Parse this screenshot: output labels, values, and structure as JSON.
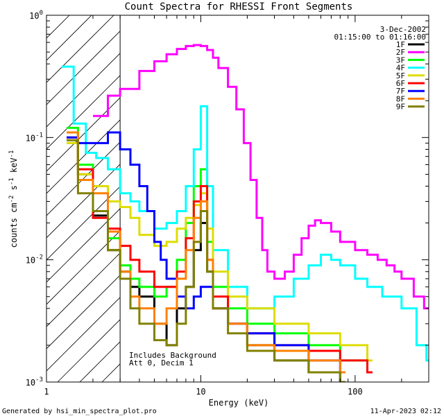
{
  "chart_data": {
    "type": "line",
    "title": "Count Spectra for RHESSI Front Segments",
    "xlabel": "Energy (keV)",
    "ylabel_main": "counts cm",
    "ylabel_sup1": "-2",
    "ylabel_mid": " s",
    "ylabel_sup2": "-1",
    "ylabel_end": " keV",
    "ylabel_sup3": "-1",
    "x_scale": "log",
    "y_scale": "log",
    "xlim": [
      1,
      300
    ],
    "ylim": [
      0.001,
      1
    ],
    "x_ticks": [
      {
        "value": 1,
        "label": "1"
      },
      {
        "value": 10,
        "label": "10"
      },
      {
        "value": 100,
        "label": "100"
      }
    ],
    "y_ticks": [
      {
        "value": 1,
        "base": "10",
        "exp": "0"
      },
      {
        "value": 0.1,
        "base": "10",
        "exp": "-1"
      },
      {
        "value": 0.01,
        "base": "10",
        "exp": "-2"
      },
      {
        "value": 0.001,
        "base": "10",
        "exp": "-3"
      }
    ],
    "date": "3-Dec-2002",
    "time_range": "01:15:00 to 01:16:00",
    "hatched_below_keV": 3,
    "annotation_line1": "Includes Background",
    "annotation_line2": "Att 0, Decim 1",
    "legend_position": "top-right",
    "series": [
      {
        "name": "1F",
        "color": "#000000",
        "points": [
          [
            1.35,
            0.11
          ],
          [
            1.6,
            0.05
          ],
          [
            2.0,
            0.023
          ],
          [
            2.5,
            0.012
          ],
          [
            3.0,
            0.008
          ],
          [
            3.5,
            0.006
          ],
          [
            4.0,
            0.005
          ],
          [
            5.0,
            0.003
          ],
          [
            6.0,
            0.002
          ],
          [
            7.0,
            0.004
          ],
          [
            8.0,
            0.006
          ],
          [
            9.0,
            0.012
          ],
          [
            10.0,
            0.02
          ],
          [
            11.0,
            0.008
          ],
          [
            12.0,
            0.004
          ],
          [
            15.0,
            0.003
          ],
          [
            20.0,
            0.002
          ],
          [
            30.0,
            0.0015
          ],
          [
            50.0,
            0.0012
          ],
          [
            80.0,
            0.001
          ]
        ]
      },
      {
        "name": "2F",
        "color": "#ff00ff",
        "points": [
          [
            2.0,
            0.15
          ],
          [
            2.5,
            0.22
          ],
          [
            3.0,
            0.25
          ],
          [
            4.0,
            0.35
          ],
          [
            5.0,
            0.42
          ],
          [
            6.0,
            0.48
          ],
          [
            7.0,
            0.53
          ],
          [
            8.0,
            0.56
          ],
          [
            9.0,
            0.57
          ],
          [
            10.0,
            0.56
          ],
          [
            11.0,
            0.52
          ],
          [
            12.0,
            0.45
          ],
          [
            13.0,
            0.37
          ],
          [
            15.0,
            0.26
          ],
          [
            17.0,
            0.17
          ],
          [
            19.0,
            0.09
          ],
          [
            21.0,
            0.045
          ],
          [
            23.0,
            0.022
          ],
          [
            25.0,
            0.012
          ],
          [
            27.0,
            0.008
          ],
          [
            30.0,
            0.007
          ],
          [
            35.0,
            0.008
          ],
          [
            40.0,
            0.011
          ],
          [
            45.0,
            0.015
          ],
          [
            50.0,
            0.019
          ],
          [
            55.0,
            0.021
          ],
          [
            60.0,
            0.02
          ],
          [
            70.0,
            0.017
          ],
          [
            80.0,
            0.014
          ],
          [
            100.0,
            0.012
          ],
          [
            120.0,
            0.011
          ],
          [
            140.0,
            0.01
          ],
          [
            160.0,
            0.009
          ],
          [
            180.0,
            0.008
          ],
          [
            200.0,
            0.007
          ],
          [
            240.0,
            0.005
          ],
          [
            280.0,
            0.004
          ]
        ]
      },
      {
        "name": "3F",
        "color": "#00ff00",
        "points": [
          [
            1.35,
            0.12
          ],
          [
            1.6,
            0.06
          ],
          [
            2.0,
            0.025
          ],
          [
            2.5,
            0.015
          ],
          [
            3.0,
            0.009
          ],
          [
            3.5,
            0.007
          ],
          [
            4.0,
            0.006
          ],
          [
            5.0,
            0.005
          ],
          [
            6.0,
            0.006
          ],
          [
            7.0,
            0.01
          ],
          [
            8.0,
            0.02
          ],
          [
            9.0,
            0.04
          ],
          [
            10.0,
            0.055
          ],
          [
            11.0,
            0.014
          ],
          [
            12.0,
            0.006
          ],
          [
            15.0,
            0.004
          ],
          [
            20.0,
            0.003
          ],
          [
            30.0,
            0.0025
          ],
          [
            50.0,
            0.002
          ],
          [
            80.0,
            0.0015
          ],
          [
            120.0,
            0.0012
          ]
        ]
      },
      {
        "name": "4F",
        "color": "#00ffff",
        "points": [
          [
            1.25,
            0.38
          ],
          [
            1.5,
            0.13
          ],
          [
            1.8,
            0.075
          ],
          [
            2.1,
            0.068
          ],
          [
            2.5,
            0.055
          ],
          [
            3.0,
            0.035
          ],
          [
            3.5,
            0.03
          ],
          [
            4.0,
            0.025
          ],
          [
            5.0,
            0.018
          ],
          [
            6.0,
            0.02
          ],
          [
            7.0,
            0.025
          ],
          [
            8.0,
            0.04
          ],
          [
            9.0,
            0.08
          ],
          [
            10.0,
            0.18
          ],
          [
            11.0,
            0.04
          ],
          [
            12.0,
            0.012
          ],
          [
            15.0,
            0.006
          ],
          [
            20.0,
            0.004
          ],
          [
            25.0,
            0.004
          ],
          [
            30.0,
            0.005
          ],
          [
            40.0,
            0.007
          ],
          [
            50.0,
            0.009
          ],
          [
            60.0,
            0.011
          ],
          [
            70.0,
            0.01
          ],
          [
            80.0,
            0.009
          ],
          [
            100.0,
            0.007
          ],
          [
            120.0,
            0.006
          ],
          [
            150.0,
            0.005
          ],
          [
            200.0,
            0.004
          ],
          [
            250.0,
            0.002
          ],
          [
            290.0,
            0.0015
          ]
        ]
      },
      {
        "name": "5F",
        "color": "#dddd00",
        "points": [
          [
            1.35,
            0.09
          ],
          [
            1.6,
            0.05
          ],
          [
            2.0,
            0.04
          ],
          [
            2.5,
            0.03
          ],
          [
            3.0,
            0.027
          ],
          [
            3.5,
            0.022
          ],
          [
            4.0,
            0.016
          ],
          [
            5.0,
            0.013
          ],
          [
            6.0,
            0.014
          ],
          [
            7.0,
            0.018
          ],
          [
            8.0,
            0.022
          ],
          [
            9.0,
            0.028
          ],
          [
            10.0,
            0.035
          ],
          [
            11.0,
            0.018
          ],
          [
            12.0,
            0.008
          ],
          [
            15.0,
            0.005
          ],
          [
            20.0,
            0.004
          ],
          [
            30.0,
            0.003
          ],
          [
            50.0,
            0.0025
          ],
          [
            80.0,
            0.002
          ],
          [
            120.0,
            0.0015
          ]
        ]
      },
      {
        "name": "6F",
        "color": "#ff0000",
        "points": [
          [
            1.35,
            0.1
          ],
          [
            1.6,
            0.055
          ],
          [
            2.0,
            0.022
          ],
          [
            2.5,
            0.018
          ],
          [
            3.0,
            0.013
          ],
          [
            3.5,
            0.01
          ],
          [
            4.0,
            0.008
          ],
          [
            5.0,
            0.006
          ],
          [
            6.0,
            0.006
          ],
          [
            7.0,
            0.008
          ],
          [
            8.0,
            0.015
          ],
          [
            9.0,
            0.03
          ],
          [
            10.0,
            0.04
          ],
          [
            11.0,
            0.01
          ],
          [
            12.0,
            0.005
          ],
          [
            15.0,
            0.003
          ],
          [
            20.0,
            0.0025
          ],
          [
            30.0,
            0.002
          ],
          [
            50.0,
            0.0018
          ],
          [
            80.0,
            0.0015
          ],
          [
            120.0,
            0.0012
          ]
        ]
      },
      {
        "name": "7F",
        "color": "#0000ff",
        "points": [
          [
            1.35,
            0.1
          ],
          [
            1.6,
            0.09
          ],
          [
            2.0,
            0.09
          ],
          [
            2.5,
            0.11
          ],
          [
            3.0,
            0.08
          ],
          [
            3.5,
            0.06
          ],
          [
            4.0,
            0.04
          ],
          [
            4.5,
            0.025
          ],
          [
            5.0,
            0.014
          ],
          [
            5.5,
            0.01
          ],
          [
            6.0,
            0.007
          ],
          [
            7.0,
            0.005
          ],
          [
            8.0,
            0.004
          ],
          [
            9.0,
            0.005
          ],
          [
            10.0,
            0.006
          ],
          [
            12.0,
            0.004
          ],
          [
            15.0,
            0.003
          ],
          [
            20.0,
            0.0025
          ],
          [
            30.0,
            0.002
          ],
          [
            50.0,
            0.0015
          ],
          [
            80.0,
            0.0012
          ]
        ]
      },
      {
        "name": "8F",
        "color": "#ff8000",
        "points": [
          [
            1.35,
            0.11
          ],
          [
            1.6,
            0.045
          ],
          [
            2.0,
            0.035
          ],
          [
            2.5,
            0.017
          ],
          [
            3.0,
            0.008
          ],
          [
            3.5,
            0.005
          ],
          [
            4.0,
            0.004
          ],
          [
            5.0,
            0.003
          ],
          [
            6.0,
            0.004
          ],
          [
            7.0,
            0.007
          ],
          [
            8.0,
            0.012
          ],
          [
            9.0,
            0.022
          ],
          [
            10.0,
            0.03
          ],
          [
            11.0,
            0.01
          ],
          [
            12.0,
            0.004
          ],
          [
            15.0,
            0.003
          ],
          [
            20.0,
            0.002
          ],
          [
            30.0,
            0.0018
          ],
          [
            50.0,
            0.0015
          ],
          [
            80.0,
            0.0012
          ]
        ]
      },
      {
        "name": "9F",
        "color": "#808000",
        "points": [
          [
            1.35,
            0.095
          ],
          [
            1.6,
            0.035
          ],
          [
            2.0,
            0.025
          ],
          [
            2.5,
            0.012
          ],
          [
            3.0,
            0.007
          ],
          [
            3.5,
            0.004
          ],
          [
            4.0,
            0.003
          ],
          [
            5.0,
            0.0022
          ],
          [
            6.0,
            0.002
          ],
          [
            7.0,
            0.003
          ],
          [
            8.0,
            0.006
          ],
          [
            9.0,
            0.014
          ],
          [
            10.0,
            0.025
          ],
          [
            11.0,
            0.008
          ],
          [
            12.0,
            0.004
          ],
          [
            15.0,
            0.0025
          ],
          [
            20.0,
            0.0018
          ],
          [
            30.0,
            0.0015
          ],
          [
            50.0,
            0.0012
          ],
          [
            80.0,
            0.001
          ]
        ]
      }
    ]
  },
  "footer": {
    "generated_by": "Generated by hsi_min_spectra_plot.pro",
    "timestamp": "11-Apr-2023 02:12"
  }
}
